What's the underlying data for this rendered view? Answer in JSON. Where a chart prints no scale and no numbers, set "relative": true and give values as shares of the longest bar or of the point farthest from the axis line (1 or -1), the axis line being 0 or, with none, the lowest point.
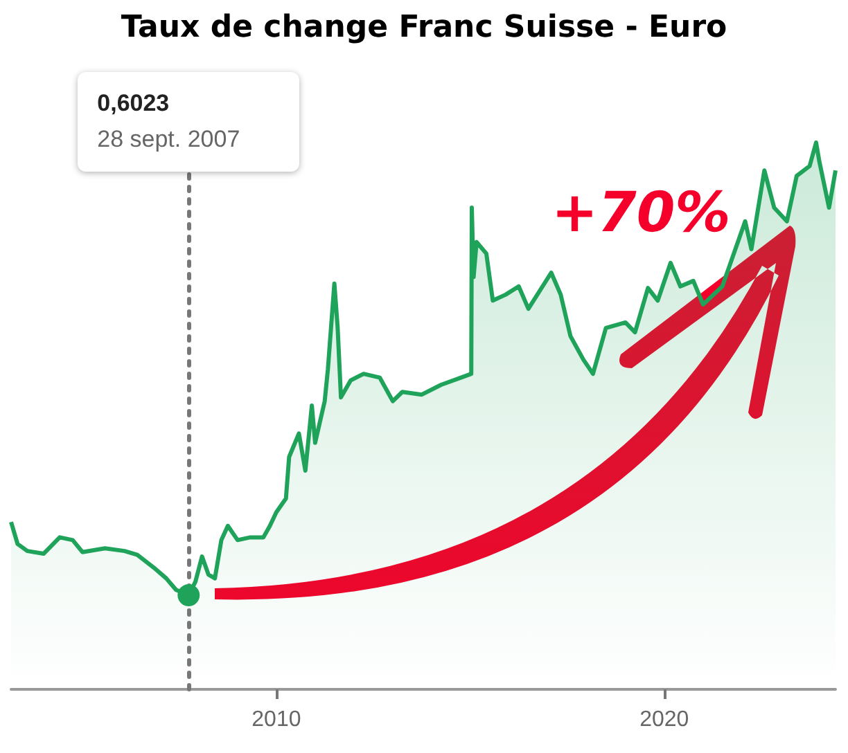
{
  "chart_data": {
    "type": "area",
    "title": "Taux de change Franc Suisse - Euro",
    "relative": true,
    "xlim": [
      "2003-03",
      "2024-06"
    ],
    "xticks": [
      "2010",
      "2020"
    ],
    "series": [
      {
        "color": "#1fa35a",
        "x": [
          "2003-03",
          "2003-05",
          "2003-08",
          "2004-01",
          "2004-06",
          "2004-10",
          "2005-01",
          "2005-08",
          "2006-02",
          "2006-06",
          "2006-11",
          "2007-03",
          "2007-06",
          "2007-09-28",
          "2007-12",
          "2008-02",
          "2008-04",
          "2008-06",
          "2008-08",
          "2008-10",
          "2009-01",
          "2009-05",
          "2009-09",
          "2009-11",
          "2010-01",
          "2010-04",
          "2010-05",
          "2010-08",
          "2010-10",
          "2010-12",
          "2011-01",
          "2011-04",
          "2011-05",
          "2011-07",
          "2011-08",
          "2011-09",
          "2011-12",
          "2012-04",
          "2012-09",
          "2013-01",
          "2013-04",
          "2013-10",
          "2014-04",
          "2014-11",
          "2015-01-10",
          "2015-01-15",
          "2015-02",
          "2015-03",
          "2015-06",
          "2015-08",
          "2015-12",
          "2016-04",
          "2016-07",
          "2017-02",
          "2017-05",
          "2017-08",
          "2017-12",
          "2018-03",
          "2018-07",
          "2019-01",
          "2019-04",
          "2019-08",
          "2019-11",
          "2020-03",
          "2020-06",
          "2020-10",
          "2021-01",
          "2021-07",
          "2021-11",
          "2022-02",
          "2022-04",
          "2022-08",
          "2022-11",
          "2023-03",
          "2023-06",
          "2023-10",
          "2023-12",
          "2024-01",
          "2024-04",
          "2024-06"
        ],
        "values": [
          0.306,
          0.266,
          0.253,
          0.248,
          0.278,
          0.273,
          0.251,
          0.258,
          0.253,
          0.246,
          0.223,
          0.203,
          0.182,
          0.172,
          0.197,
          0.243,
          0.21,
          0.203,
          0.273,
          0.299,
          0.273,
          0.278,
          0.278,
          0.299,
          0.324,
          0.349,
          0.425,
          0.468,
          0.4,
          0.519,
          0.451,
          0.527,
          0.585,
          0.742,
          0.661,
          0.534,
          0.565,
          0.577,
          0.57,
          0.527,
          0.544,
          0.539,
          0.557,
          0.572,
          0.577,
          0.881,
          0.754,
          0.818,
          0.797,
          0.711,
          0.722,
          0.737,
          0.696,
          0.762,
          0.722,
          0.646,
          0.603,
          0.577,
          0.661,
          0.671,
          0.653,
          0.734,
          0.711,
          0.78,
          0.737,
          0.747,
          0.704,
          0.737,
          0.805,
          0.856,
          0.805,
          0.949,
          0.881,
          0.856,
          0.939,
          0.957,
          1,
          0.965,
          0.881,
          0.949
        ]
      }
    ],
    "ref_lines": [
      {
        "axis": "x",
        "value": "2007-09-28",
        "color": "#777777",
        "line_style": "dotted"
      }
    ],
    "annotations": [
      "0,6023",
      "28 sept. 2007",
      "+70%"
    ],
    "marker": "none"
  }
}
